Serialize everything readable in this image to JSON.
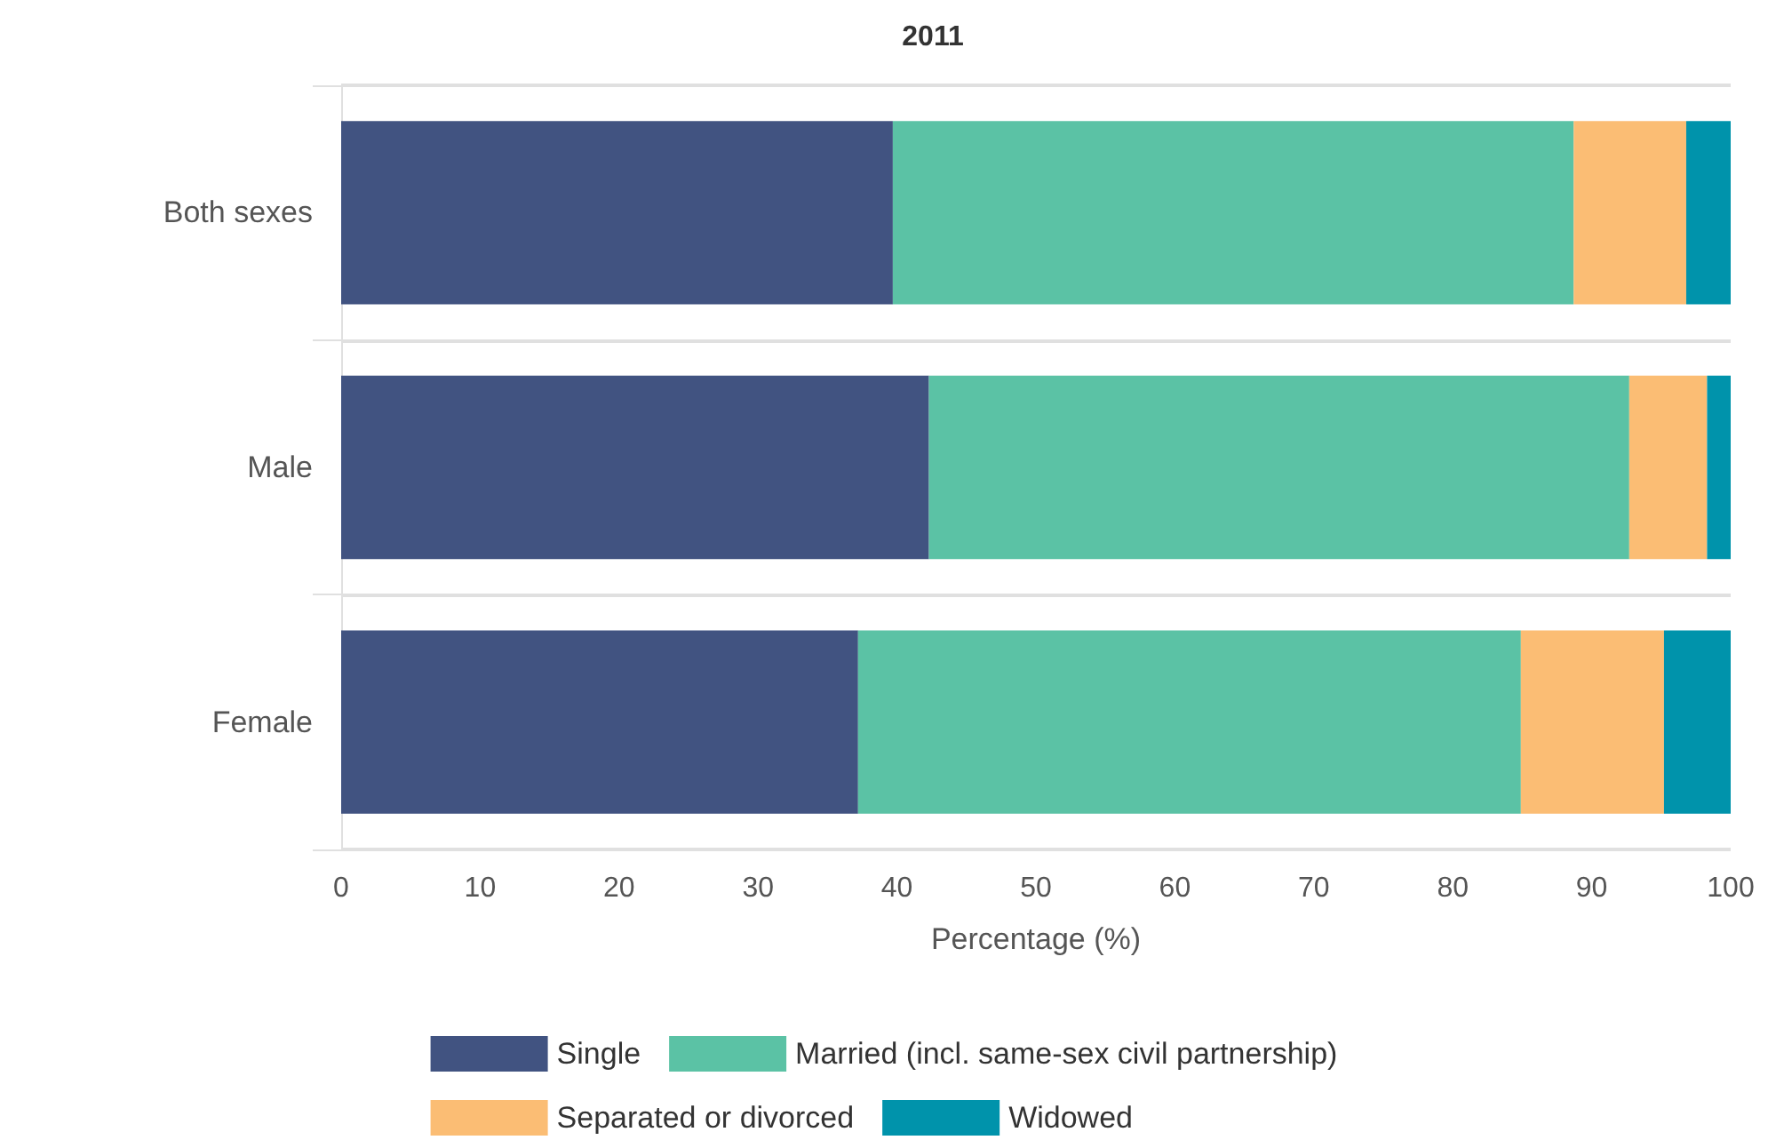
{
  "chart_data": {
    "type": "bar",
    "orientation": "horizontal",
    "stacked": true,
    "title": "2011",
    "xlabel": "Percentage (%)",
    "categories": [
      "Both sexes",
      "Male",
      "Female"
    ],
    "series": [
      {
        "name": "Single",
        "color": "#415381",
        "values": [
          39.7,
          42.3,
          37.2
        ]
      },
      {
        "name": "Married (incl. same-sex civil partnership)",
        "color": "#5bc2a5",
        "values": [
          49.0,
          50.4,
          47.7
        ]
      },
      {
        "name": "Separated or divorced",
        "color": "#fbbd74",
        "values": [
          8.1,
          5.6,
          10.3
        ]
      },
      {
        "name": "Widowed",
        "color": "#0093ab",
        "values": [
          3.2,
          1.7,
          4.8
        ]
      }
    ],
    "xlim": [
      0,
      100
    ],
    "xticks": [
      0,
      10,
      20,
      30,
      40,
      50,
      60,
      70,
      80,
      90,
      100
    ],
    "grid": "y",
    "legend": "bottom"
  }
}
